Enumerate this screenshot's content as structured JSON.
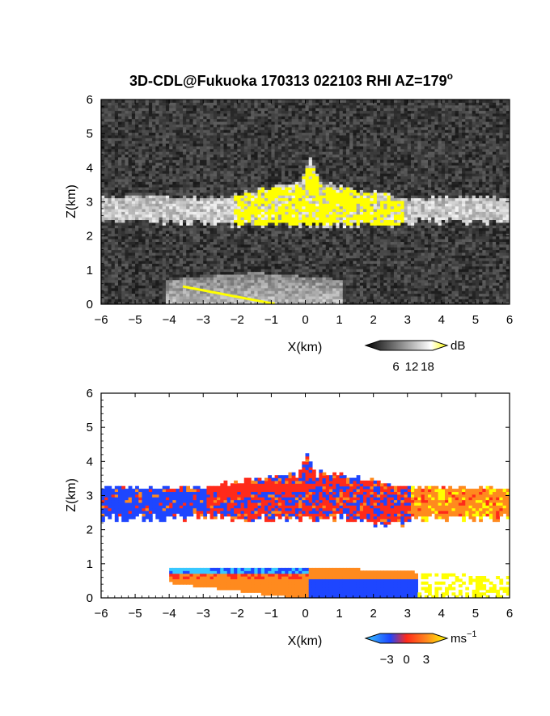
{
  "title_main": "3D-CDL@Fukuoka 170313 022103 RHI AZ=179",
  "title_sup": "o",
  "colors": {
    "yellow": "#ffff00",
    "red": "#ff2a1a",
    "orange": "#ff8a1e",
    "blue": "#1e46ff",
    "cyan": "#38c8ff",
    "gray_low": "#2a2a2a",
    "gray_high": "#f2f2f2"
  },
  "chart_data": [
    {
      "type": "heatmap",
      "name": "reflectivity-panel",
      "xlabel": "X(km)",
      "ylabel": "Z(km)",
      "xlim": [
        -6,
        6
      ],
      "ylim": [
        0,
        6
      ],
      "xticks": [
        "-6",
        "-5",
        "-4",
        "-3",
        "-2",
        "-1",
        "0",
        "1",
        "2",
        "3",
        "4",
        "5",
        "6"
      ],
      "yticks": [
        "0",
        "1",
        "2",
        "3",
        "4",
        "5",
        "6"
      ],
      "colorbar": {
        "unit": "dB",
        "ticks": [
          "6",
          "12",
          "18"
        ],
        "tick_values": [
          6,
          12,
          18
        ],
        "range": [
          0,
          20
        ],
        "colors": [
          "#000000",
          "#ffffff",
          "#ffff00"
        ]
      },
      "features": {
        "cloud_layer_km": {
          "x": [
            -6,
            6
          ],
          "z_bottom": 2.4,
          "z_top": 3.1
        },
        "cloud_peak": {
          "x": 0.1,
          "z": 4.3
        },
        "high_echo_region": {
          "x": [
            -2.2,
            2.8
          ],
          "z": [
            2.3,
            3.4
          ]
        },
        "boundary_layer_km": {
          "x": [
            -4.2,
            1.0
          ],
          "z": [
            0.0,
            0.9
          ]
        }
      }
    },
    {
      "type": "heatmap",
      "name": "velocity-panel",
      "xlabel": "X(km)",
      "ylabel": "Z(km)",
      "xlim": [
        -6,
        6
      ],
      "ylim": [
        0,
        6
      ],
      "xticks": [
        "-6",
        "-5",
        "-4",
        "-3",
        "-2",
        "-1",
        "0",
        "1",
        "2",
        "3",
        "4",
        "5",
        "6"
      ],
      "yticks": [
        "0",
        "1",
        "2",
        "3",
        "4",
        "5",
        "6"
      ],
      "colorbar": {
        "unit": "ms",
        "unit_sup": "−1",
        "ticks": [
          "−3",
          "0",
          "3"
        ],
        "tick_values": [
          -3,
          0,
          3
        ],
        "range": [
          -4,
          4
        ],
        "colors": [
          "#38c8ff",
          "#1e46ff",
          "#ff2a1a",
          "#ff8a1e",
          "#ffff00"
        ]
      },
      "features": {
        "cloud_layer_km": {
          "x": [
            -6,
            6
          ],
          "z_bottom": 2.3,
          "z_top": 3.3
        },
        "cloud_peak": {
          "x": 0.0,
          "z": 4.2
        },
        "low_layer_km": {
          "x": [
            -4.1,
            5.9
          ],
          "z": [
            0.0,
            0.9
          ]
        }
      }
    }
  ]
}
